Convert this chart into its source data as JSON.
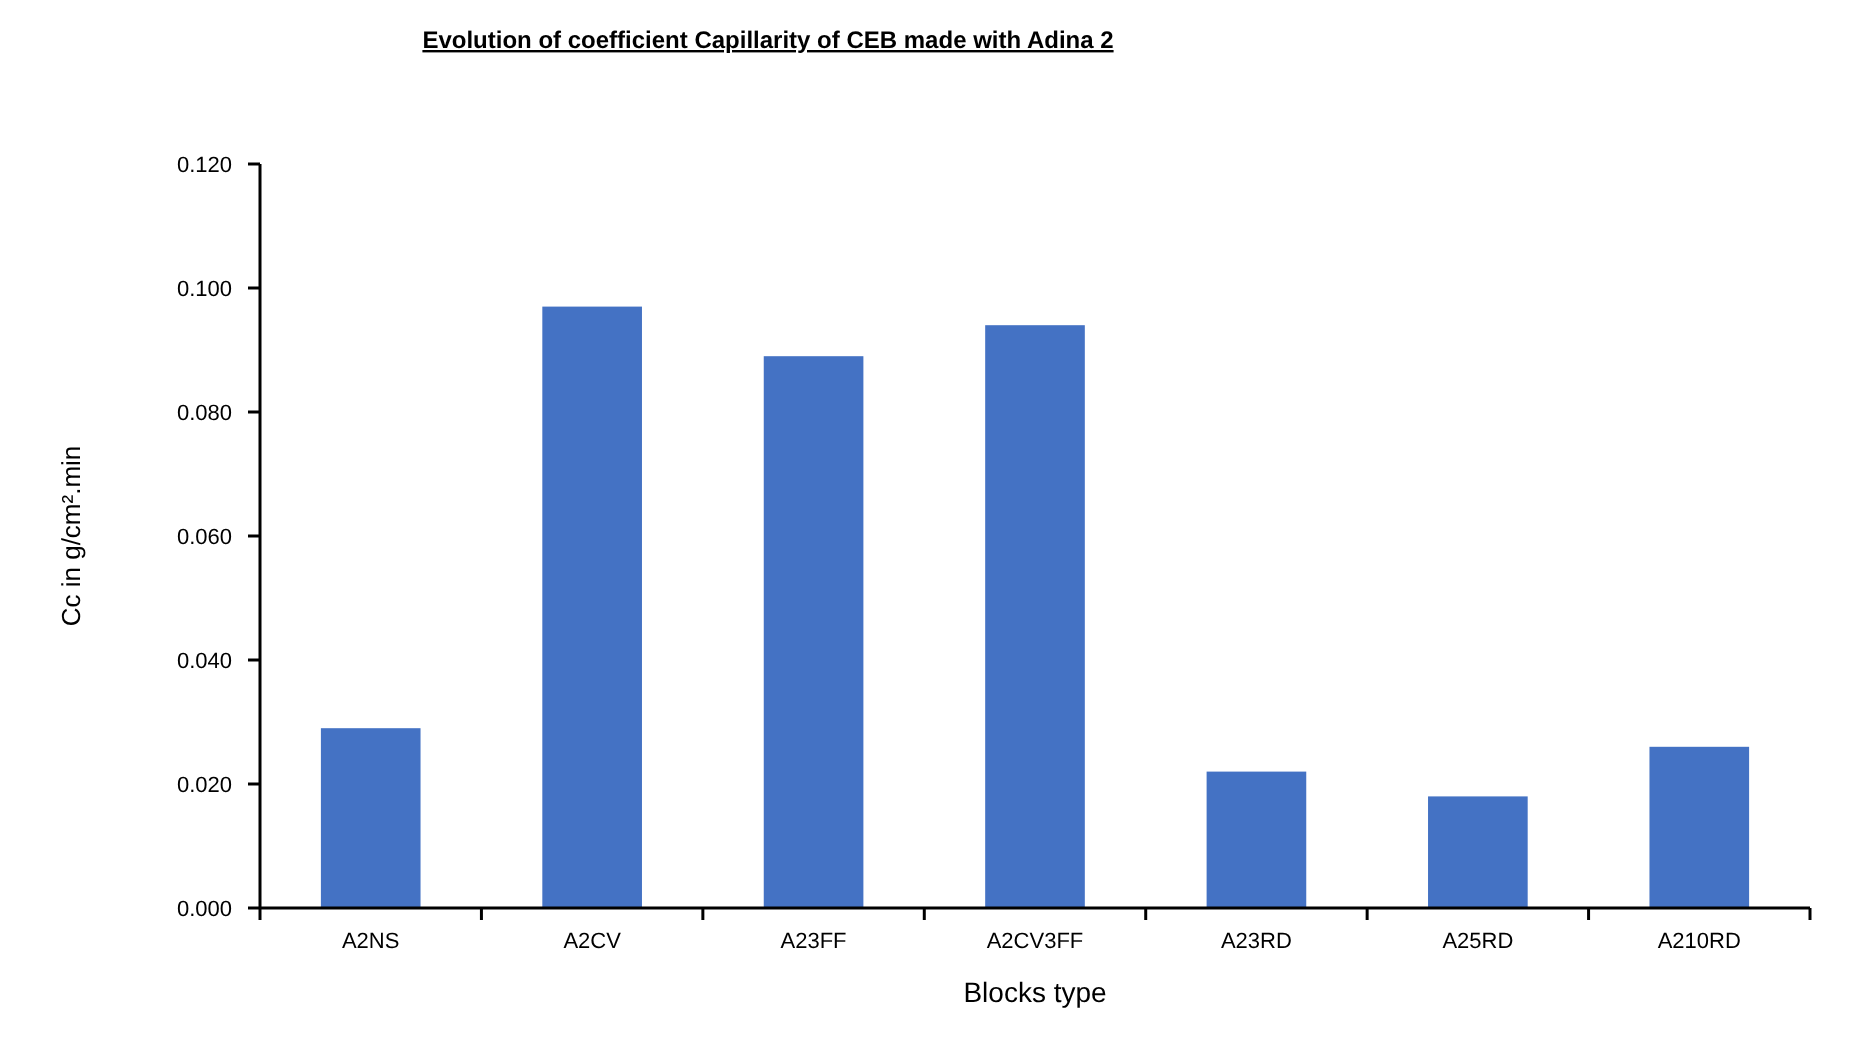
{
  "chart_data": {
    "type": "bar",
    "title": "Evolution  of coefficient Capillarity of CEB  made with Adina 2",
    "xlabel": "Blocks type",
    "ylabel": "Cc in g/cm².min",
    "categories": [
      "A2NS",
      "A2CV",
      "A23FF",
      "A2CV3FF",
      "A23RD",
      "A25RD",
      "A210RD"
    ],
    "values": [
      0.029,
      0.097,
      0.089,
      0.094,
      0.022,
      0.018,
      0.026
    ],
    "color": "#4472c4",
    "ylim": [
      0,
      0.12
    ],
    "yticks": [
      {
        "value": 0,
        "label": "0.000"
      },
      {
        "value": 0.02,
        "label": "0.020"
      },
      {
        "value": 0.04,
        "label": "0.040"
      },
      {
        "value": 0.06,
        "label": "0.060"
      },
      {
        "value": 0.08,
        "label": "0.080"
      },
      {
        "value": 0.1,
        "label": "0.100"
      },
      {
        "value": 0.12,
        "label": "0.120"
      }
    ],
    "grid": false
  }
}
